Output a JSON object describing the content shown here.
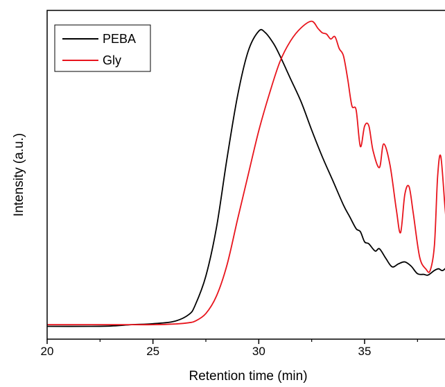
{
  "chart_data": {
    "type": "line",
    "title": "",
    "xlabel": "Retention time (min)",
    "ylabel": "Intensity (a.u.)",
    "xlim": [
      20,
      39
    ],
    "ylim": [
      0,
      1
    ],
    "x_ticks": [
      "20",
      "25",
      "30",
      "35"
    ],
    "x_tick_values": [
      20,
      25,
      30,
      35
    ],
    "y_ticks_shown": false,
    "grid": false,
    "legend_position": "top-left",
    "series": [
      {
        "name": "PEBA",
        "color": "#000000",
        "points": [
          [
            20,
            0.039
          ],
          [
            22,
            0.039
          ],
          [
            23,
            0.04
          ],
          [
            24,
            0.044
          ],
          [
            25,
            0.047
          ],
          [
            26,
            0.054
          ],
          [
            26.7,
            0.075
          ],
          [
            27,
            0.104
          ],
          [
            27.5,
            0.192
          ],
          [
            28,
            0.339
          ],
          [
            28.5,
            0.55
          ],
          [
            29,
            0.741
          ],
          [
            29.5,
            0.876
          ],
          [
            30,
            0.937
          ],
          [
            30.3,
            0.933
          ],
          [
            30.7,
            0.899
          ],
          [
            31,
            0.862
          ],
          [
            31.5,
            0.792
          ],
          [
            32,
            0.722
          ],
          [
            32.5,
            0.636
          ],
          [
            33,
            0.555
          ],
          [
            33.5,
            0.482
          ],
          [
            34,
            0.408
          ],
          [
            34.3,
            0.372
          ],
          [
            34.6,
            0.336
          ],
          [
            34.8,
            0.327
          ],
          [
            35.0,
            0.296
          ],
          [
            35.2,
            0.29
          ],
          [
            35.5,
            0.268
          ],
          [
            35.7,
            0.275
          ],
          [
            36.0,
            0.246
          ],
          [
            36.3,
            0.22
          ],
          [
            36.6,
            0.229
          ],
          [
            36.9,
            0.235
          ],
          [
            37.2,
            0.222
          ],
          [
            37.5,
            0.199
          ],
          [
            37.8,
            0.197
          ],
          [
            38.0,
            0.195
          ],
          [
            38.3,
            0.209
          ],
          [
            38.5,
            0.214
          ],
          [
            38.7,
            0.209
          ],
          [
            39.0,
            0.228
          ]
        ]
      },
      {
        "name": "Gly",
        "color": "#e8141c",
        "points": [
          [
            20,
            0.044
          ],
          [
            24,
            0.044
          ],
          [
            25,
            0.044
          ],
          [
            26,
            0.046
          ],
          [
            26.7,
            0.05
          ],
          [
            27,
            0.055
          ],
          [
            27.5,
            0.078
          ],
          [
            28,
            0.131
          ],
          [
            28.5,
            0.226
          ],
          [
            29,
            0.365
          ],
          [
            29.5,
            0.5
          ],
          [
            30,
            0.634
          ],
          [
            30.5,
            0.746
          ],
          [
            31,
            0.844
          ],
          [
            31.5,
            0.907
          ],
          [
            32,
            0.947
          ],
          [
            32.5,
            0.967
          ],
          [
            32.8,
            0.945
          ],
          [
            33.0,
            0.932
          ],
          [
            33.2,
            0.928
          ],
          [
            33.4,
            0.913
          ],
          [
            33.6,
            0.92
          ],
          [
            33.8,
            0.884
          ],
          [
            34.0,
            0.862
          ],
          [
            34.2,
            0.792
          ],
          [
            34.4,
            0.71
          ],
          [
            34.6,
            0.697
          ],
          [
            34.8,
            0.586
          ],
          [
            35.0,
            0.648
          ],
          [
            35.2,
            0.649
          ],
          [
            35.4,
            0.573
          ],
          [
            35.7,
            0.522
          ],
          [
            35.9,
            0.594
          ],
          [
            36.2,
            0.53
          ],
          [
            36.5,
            0.394
          ],
          [
            36.7,
            0.324
          ],
          [
            36.9,
            0.44
          ],
          [
            37.1,
            0.464
          ],
          [
            37.3,
            0.383
          ],
          [
            37.6,
            0.25
          ],
          [
            37.9,
            0.213
          ],
          [
            38.1,
            0.209
          ],
          [
            38.3,
            0.286
          ],
          [
            38.45,
            0.494
          ],
          [
            38.6,
            0.556
          ],
          [
            38.8,
            0.4
          ],
          [
            39.0,
            0.25
          ]
        ]
      }
    ]
  }
}
